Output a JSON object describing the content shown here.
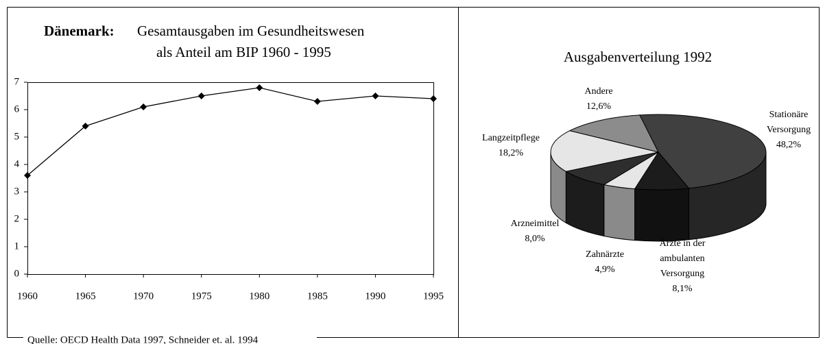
{
  "chart_data": [
    {
      "type": "line",
      "title": "Dänemark:",
      "subtitle": [
        "Gesamtausgaben im Gesundheitswesen",
        "als Anteil am BIP 1960 - 1995"
      ],
      "x": [
        1960,
        1965,
        1970,
        1975,
        1980,
        1985,
        1990,
        1995
      ],
      "values": [
        3.6,
        5.4,
        6.1,
        6.5,
        6.8,
        6.3,
        6.5,
        6.4
      ],
      "color": "#000000",
      "xlim": [
        1960,
        1995
      ],
      "xticks": [
        1960,
        1965,
        1970,
        1975,
        1980,
        1985,
        1990,
        1995
      ],
      "ylim": [
        0,
        7
      ],
      "yticks": [
        0,
        1,
        2,
        3,
        4,
        5,
        6,
        7
      ],
      "grid": false
    },
    {
      "type": "pie",
      "title": "Ausgabenverteilung 1992",
      "categories": [
        [
          "Stationäre",
          "Versorgung"
        ],
        [
          "Ärzte in der",
          "ambulanten",
          "Versorgung"
        ],
        [
          "Zahnärzte"
        ],
        [
          "Arzneimittel"
        ],
        [
          "Langzeitpflege"
        ],
        [
          "Andere"
        ]
      ],
      "values": [
        48.2,
        8.1,
        4.9,
        8.0,
        18.2,
        12.6
      ],
      "value_labels": [
        "48,2%",
        "8,1%",
        "4,9%",
        "8,0%",
        "18,2%",
        "12,6%"
      ],
      "colors": [
        "#404040",
        "#1c1c1c",
        "#e6e6e6",
        "#2e2e2e",
        "#e6e6e6",
        "#8c8c8c"
      ],
      "three_d": true
    }
  ],
  "source": "Quelle: OECD Health Data 1997, Schneider et. al. 1994"
}
